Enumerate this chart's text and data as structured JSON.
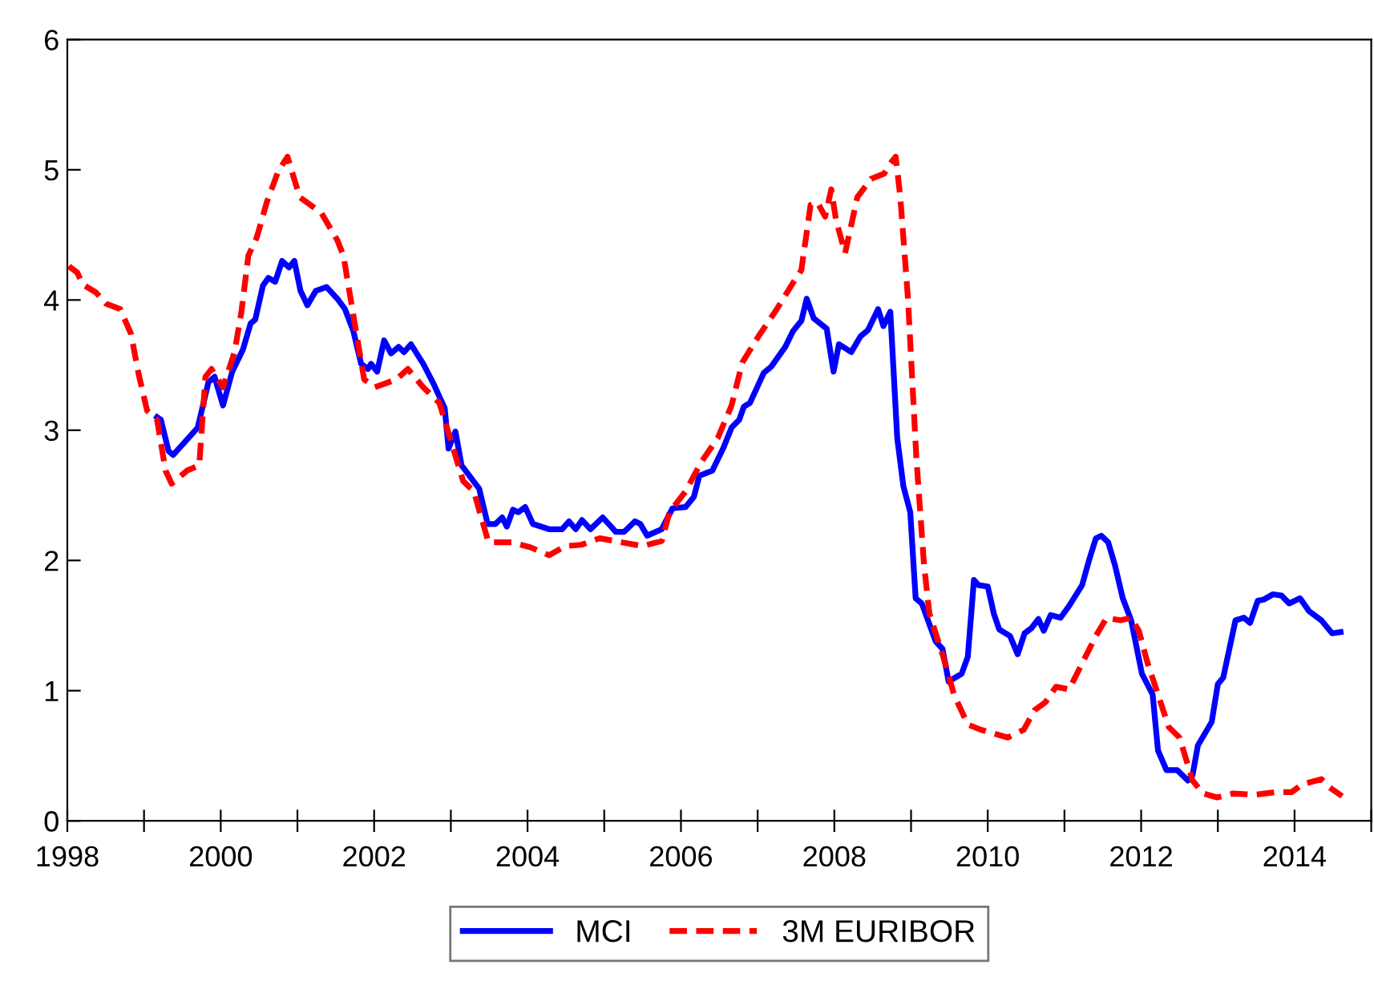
{
  "chart_data": {
    "type": "line",
    "xlim": [
      1998,
      2015
    ],
    "ylim": [
      0,
      6
    ],
    "yticks": [
      0,
      1,
      2,
      3,
      4,
      5,
      6
    ],
    "xticks": [
      1998,
      {
        "value": 1999,
        "label": null
      },
      2000,
      {
        "value": 2001,
        "label": null
      },
      2002,
      {
        "value": 2003,
        "label": null
      },
      2004,
      {
        "value": 2005,
        "label": null
      },
      2006,
      {
        "value": 2007,
        "label": null
      },
      2008,
      {
        "value": 2009,
        "label": null
      },
      2010,
      {
        "value": 2011,
        "label": null
      },
      2012,
      {
        "value": 2013,
        "label": null
      },
      2014,
      {
        "value": 2015,
        "label": null
      }
    ],
    "grid": false,
    "legend": "bottom",
    "series": [
      {
        "name": "MCI",
        "color": "#0000ff",
        "line_style": "solid",
        "x": [
          1999.17,
          1999.22,
          1999.32,
          1999.38,
          1999.7,
          1999.84,
          1999.92,
          2000.03,
          2000.15,
          2000.29,
          2000.39,
          2000.45,
          2000.55,
          2000.62,
          2000.71,
          2000.8,
          2000.89,
          2000.96,
          2001.04,
          2001.13,
          2001.24,
          2001.38,
          2001.52,
          2001.62,
          2001.73,
          2001.83,
          2001.92,
          2001.96,
          2002.04,
          2002.13,
          2002.22,
          2002.32,
          2002.39,
          2002.48,
          2002.64,
          2002.78,
          2002.92,
          2002.97,
          2003.06,
          2003.14,
          2003.37,
          2003.48,
          2003.58,
          2003.67,
          2003.73,
          2003.81,
          2003.88,
          2003.97,
          2004.07,
          2004.28,
          2004.45,
          2004.54,
          2004.63,
          2004.71,
          2004.82,
          2004.98,
          2005.15,
          2005.26,
          2005.4,
          2005.47,
          2005.56,
          2005.75,
          2005.89,
          2006.06,
          2006.17,
          2006.24,
          2006.41,
          2006.55,
          2006.66,
          2006.76,
          2006.82,
          2006.9,
          2007.08,
          2007.18,
          2007.36,
          2007.46,
          2007.57,
          2007.64,
          2007.73,
          2007.9,
          2007.99,
          2008.06,
          2008.22,
          2008.34,
          2008.44,
          2008.57,
          2008.64,
          2008.73,
          2008.82,
          2008.9,
          2008.99,
          2009.06,
          2009.14,
          2009.32,
          2009.41,
          2009.49,
          2009.66,
          2009.74,
          2009.82,
          2009.88,
          2010.0,
          2010.08,
          2010.15,
          2010.29,
          2010.39,
          2010.48,
          2010.57,
          2010.66,
          2010.73,
          2010.82,
          2010.95,
          2011.06,
          2011.23,
          2011.32,
          2011.41,
          2011.48,
          2011.57,
          2011.66,
          2011.76,
          2011.87,
          2012.01,
          2012.15,
          2012.22,
          2012.33,
          2012.47,
          2012.61,
          2012.67,
          2012.74,
          2012.92,
          2013.0,
          2013.07,
          2013.23,
          2013.34,
          2013.42,
          2013.52,
          2013.6,
          2013.72,
          2013.83,
          2013.93,
          2014.07,
          2014.19,
          2014.35,
          2014.49,
          2014.6
        ],
        "values": [
          3.1,
          3.08,
          2.84,
          2.81,
          3.02,
          3.37,
          3.41,
          3.19,
          3.45,
          3.62,
          3.82,
          3.85,
          4.11,
          4.17,
          4.14,
          4.3,
          4.25,
          4.3,
          4.07,
          3.96,
          4.07,
          4.1,
          4.01,
          3.93,
          3.76,
          3.51,
          3.47,
          3.51,
          3.45,
          3.69,
          3.59,
          3.64,
          3.6,
          3.66,
          3.51,
          3.35,
          3.17,
          2.86,
          2.99,
          2.73,
          2.55,
          2.28,
          2.28,
          2.33,
          2.26,
          2.39,
          2.37,
          2.41,
          2.28,
          2.24,
          2.24,
          2.3,
          2.24,
          2.31,
          2.24,
          2.33,
          2.22,
          2.22,
          2.3,
          2.28,
          2.19,
          2.24,
          2.4,
          2.41,
          2.49,
          2.65,
          2.69,
          2.86,
          3.02,
          3.08,
          3.18,
          3.21,
          3.44,
          3.49,
          3.64,
          3.76,
          3.84,
          4.01,
          3.86,
          3.78,
          3.45,
          3.66,
          3.6,
          3.72,
          3.77,
          3.93,
          3.8,
          3.91,
          2.94,
          2.57,
          2.37,
          1.71,
          1.67,
          1.38,
          1.32,
          1.07,
          1.13,
          1.26,
          1.85,
          1.81,
          1.8,
          1.59,
          1.47,
          1.42,
          1.28,
          1.44,
          1.48,
          1.55,
          1.46,
          1.58,
          1.56,
          1.65,
          1.81,
          2.0,
          2.17,
          2.19,
          2.14,
          1.96,
          1.71,
          1.54,
          1.13,
          0.97,
          0.54,
          0.39,
          0.39,
          0.31,
          0.35,
          0.58,
          0.76,
          1.05,
          1.1,
          1.54,
          1.56,
          1.52,
          1.69,
          1.7,
          1.74,
          1.73,
          1.67,
          1.71,
          1.61,
          1.54,
          1.44,
          1.45
        ]
      },
      {
        "name": "3M EURIBOR",
        "color": "#ff0000",
        "line_style": "dashed",
        "x": [
          1998.02,
          1998.13,
          1998.2,
          1998.37,
          1998.51,
          1998.69,
          1998.83,
          1998.93,
          1999.04,
          1999.17,
          1999.28,
          1999.36,
          1999.56,
          1999.72,
          1999.8,
          1999.88,
          2000.03,
          2000.18,
          2000.27,
          2000.36,
          2000.47,
          2000.6,
          2000.75,
          2000.87,
          2001.03,
          2001.31,
          2001.52,
          2001.6,
          2001.73,
          2001.87,
          2002.01,
          2002.29,
          2002.44,
          2002.64,
          2002.85,
          2002.99,
          2003.16,
          2003.3,
          2003.49,
          2003.79,
          2004.04,
          2004.28,
          2004.49,
          2004.7,
          2004.94,
          2005.22,
          2005.5,
          2005.75,
          2005.85,
          2006.06,
          2006.27,
          2006.48,
          2006.66,
          2006.8,
          2007.01,
          2007.25,
          2007.46,
          2007.57,
          2007.69,
          2007.78,
          2007.88,
          2007.96,
          2008.02,
          2008.14,
          2008.2,
          2008.3,
          2008.48,
          2008.65,
          2008.72,
          2008.8,
          2008.86,
          2008.96,
          2009.07,
          2009.17,
          2009.24,
          2009.42,
          2009.56,
          2009.74,
          2009.91,
          2010.26,
          2010.47,
          2010.61,
          2010.75,
          2010.89,
          2011.06,
          2011.24,
          2011.41,
          2011.55,
          2011.73,
          2011.87,
          2011.97,
          2012.08,
          2012.22,
          2012.36,
          2012.5,
          2012.67,
          2012.81,
          2012.99,
          2013.2,
          2013.48,
          2013.75,
          2013.96,
          2014.1,
          2014.35,
          2014.45,
          2014.62
        ],
        "values": [
          4.26,
          4.21,
          4.12,
          4.06,
          3.97,
          3.93,
          3.74,
          3.43,
          3.15,
          3.08,
          2.69,
          2.59,
          2.69,
          2.73,
          3.41,
          3.47,
          3.33,
          3.6,
          3.91,
          4.34,
          4.48,
          4.75,
          4.99,
          5.1,
          4.79,
          4.67,
          4.46,
          4.34,
          3.88,
          3.39,
          3.33,
          3.39,
          3.47,
          3.33,
          3.21,
          2.94,
          2.61,
          2.53,
          2.14,
          2.14,
          2.1,
          2.04,
          2.11,
          2.12,
          2.17,
          2.14,
          2.11,
          2.15,
          2.37,
          2.53,
          2.76,
          2.94,
          3.19,
          3.52,
          3.72,
          3.93,
          4.13,
          4.23,
          4.73,
          4.75,
          4.64,
          4.85,
          4.62,
          4.36,
          4.52,
          4.79,
          4.93,
          4.97,
          5.04,
          5.1,
          4.79,
          4.01,
          2.78,
          1.96,
          1.59,
          1.26,
          0.97,
          0.74,
          0.7,
          0.64,
          0.7,
          0.85,
          0.91,
          1.03,
          1.01,
          1.22,
          1.42,
          1.56,
          1.54,
          1.56,
          1.46,
          1.22,
          0.97,
          0.72,
          0.64,
          0.31,
          0.21,
          0.18,
          0.21,
          0.2,
          0.22,
          0.22,
          0.28,
          0.32,
          0.26,
          0.19
        ]
      }
    ]
  }
}
